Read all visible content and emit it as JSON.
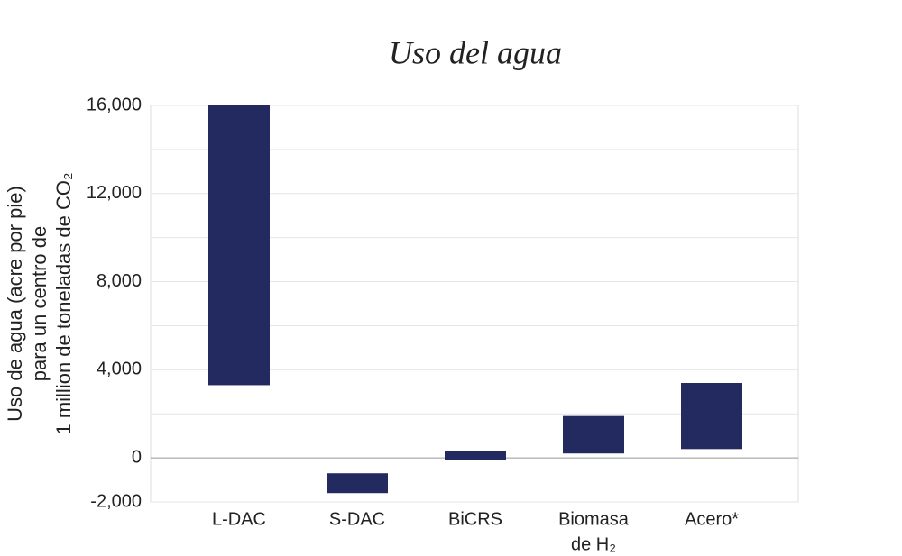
{
  "chart_data": {
    "type": "floating-bar",
    "title": "Uso del agua",
    "ylabel": [
      "Uso de agua (acre por pie)",
      "para un centro de",
      "1 million de toneladas de CO₂"
    ],
    "categories": [
      [
        "L-DAC"
      ],
      [
        "S-DAC"
      ],
      [
        "BiCRS"
      ],
      [
        "Biomasa",
        "de H₂"
      ],
      [
        "Acero*"
      ]
    ],
    "low": [
      3300,
      -1600,
      -100,
      200,
      400
    ],
    "high": [
      16000,
      -700,
      300,
      1900,
      3400
    ],
    "color": "#232a60",
    "ylim": [
      -2000,
      16000
    ],
    "yticks": [
      {
        "value": -2000,
        "label": "-2,000"
      },
      0,
      {
        "value": 4000,
        "label": "4,000"
      },
      {
        "value": 8000,
        "label": "8,000"
      },
      {
        "value": 12000,
        "label": "12,000"
      },
      {
        "value": 16000,
        "label": "16,000"
      }
    ],
    "minor_gridlines": [
      2000,
      6000,
      10000,
      14000
    ],
    "grid": true
  }
}
